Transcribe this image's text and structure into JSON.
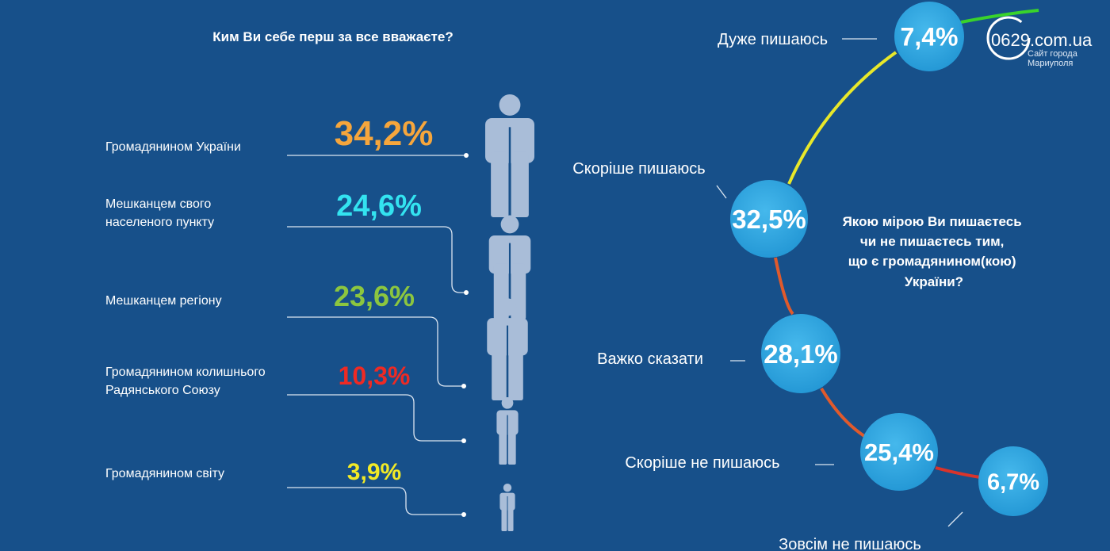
{
  "logo": {
    "domain": "0629.com.ua",
    "tagline_1": "Сайт города",
    "tagline_2": "Мариуполя"
  },
  "chart_data": [
    {
      "type": "bar",
      "title": "Ким Ви себе перш за все вважаєте?",
      "categories": [
        "Громадянином України",
        "Мешканцем свого населеного пункту",
        "Мешканцем регіону",
        "Громадянином колишнього Радянського Союзу",
        "Громадянином світу"
      ],
      "label_lines": [
        [
          "Громадянином України"
        ],
        [
          "Мешканцем свого",
          "населеного пункту"
        ],
        [
          "Мешканцем регіону"
        ],
        [
          "Громадянином колишнього",
          "Радянського Союзу"
        ],
        [
          "Громадянином світу"
        ]
      ],
      "values": [
        34.2,
        24.6,
        23.6,
        10.3,
        3.9
      ],
      "value_labels": [
        "34,2%",
        "24,6%",
        "23,6%",
        "10,3%",
        "3,9%"
      ],
      "colors": [
        "#f6a63c",
        "#33e3f0",
        "#8cc63f",
        "#ee2a24",
        "#f2ea26"
      ],
      "icon": "person-icon"
    },
    {
      "type": "line",
      "title": "Якою мірою Ви пишаєтесь чи не пишаєтесь тим, що є громадянином(кою) України?",
      "title_lines": [
        "Якою мірою Ви пишаєтесь",
        "чи не пишаєтесь тим,",
        "що є громадянином(кою)",
        "України?"
      ],
      "categories": [
        "Дуже пишаюсь",
        "Скоріше пишаюсь",
        "Важко сказати",
        "Скоріше не пишаюсь",
        "Зовсім не пишаюсь"
      ],
      "values": [
        7.4,
        32.5,
        28.1,
        25.4,
        6.7
      ],
      "value_labels": [
        "7,4%",
        "32,5%",
        "28,1%",
        "25,4%",
        "6,7%"
      ],
      "bubble_color": "#2fa6df",
      "segment_colors": [
        "#e8e82a",
        "#e05a2c",
        "#e05a2c",
        "#d9342b"
      ]
    }
  ]
}
